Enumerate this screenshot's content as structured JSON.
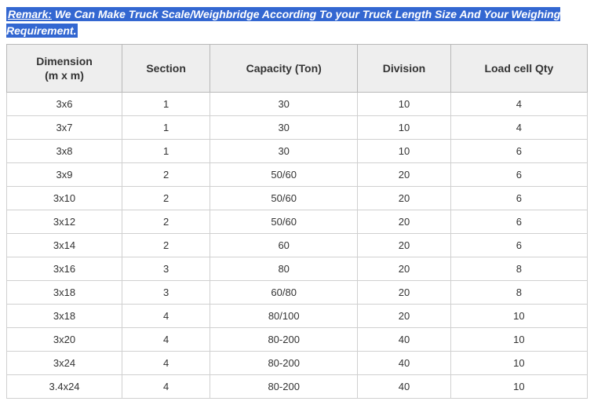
{
  "remark": {
    "label": "Remark:",
    "text": " We Can Make Truck Scale/Weighbridge According To your Truck Length Size And Your Weighing Requirement."
  },
  "table": {
    "columns": [
      "Dimension\n(m x m)",
      "Section",
      "Capacity (Ton)",
      "Division",
      "Load cell Qty"
    ],
    "rows": [
      [
        "3x6",
        "1",
        "30",
        "10",
        "4"
      ],
      [
        "3x7",
        "1",
        "30",
        "10",
        "4"
      ],
      [
        "3x8",
        "1",
        "30",
        "10",
        "6"
      ],
      [
        "3x9",
        "2",
        "50/60",
        "20",
        "6"
      ],
      [
        "3x10",
        "2",
        "50/60",
        "20",
        "6"
      ],
      [
        "3x12",
        "2",
        "50/60",
        "20",
        "6"
      ],
      [
        "3x14",
        "2",
        "60",
        "20",
        "6"
      ],
      [
        "3x16",
        "3",
        "80",
        "20",
        "8"
      ],
      [
        "3x18",
        "3",
        "60/80",
        "20",
        "8"
      ],
      [
        "3x18",
        "4",
        "80/100",
        "20",
        "10"
      ],
      [
        "3x20",
        "4",
        "80-200",
        "40",
        "10"
      ],
      [
        "3x24",
        "4",
        "80-200",
        "40",
        "10"
      ],
      [
        "3.4x24",
        "4",
        "80-200",
        "40",
        "10"
      ]
    ]
  },
  "styling": {
    "highlight_bg": "#3367d1",
    "highlight_text": "#ffffff",
    "header_bg": "#eeeeee",
    "border_color": "#b8b8b8",
    "cell_border": "#d0d0d0",
    "text_color": "#333333",
    "font_family": "Arial, Helvetica, sans-serif",
    "header_fontsize": 14,
    "cell_fontsize": 13,
    "remark_fontsize": 14
  }
}
